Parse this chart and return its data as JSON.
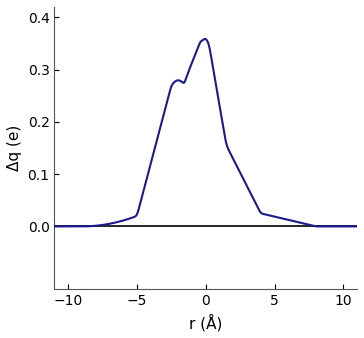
{
  "title": "",
  "xlabel": "r (Å)",
  "ylabel": "Δq (e)",
  "xlim": [
    -11,
    11
  ],
  "ylim": [
    -0.12,
    0.42
  ],
  "yticks": [
    0.0,
    0.1,
    0.2,
    0.3,
    0.4
  ],
  "xticks": [
    -10,
    -5,
    0,
    5,
    10
  ],
  "line_color": "#1a1a8c",
  "hline_color": "#000000",
  "curve_x_start": -11,
  "curve_x_end": 11,
  "background_color": "#ffffff",
  "axis_color": "#555555",
  "font_size": 11
}
